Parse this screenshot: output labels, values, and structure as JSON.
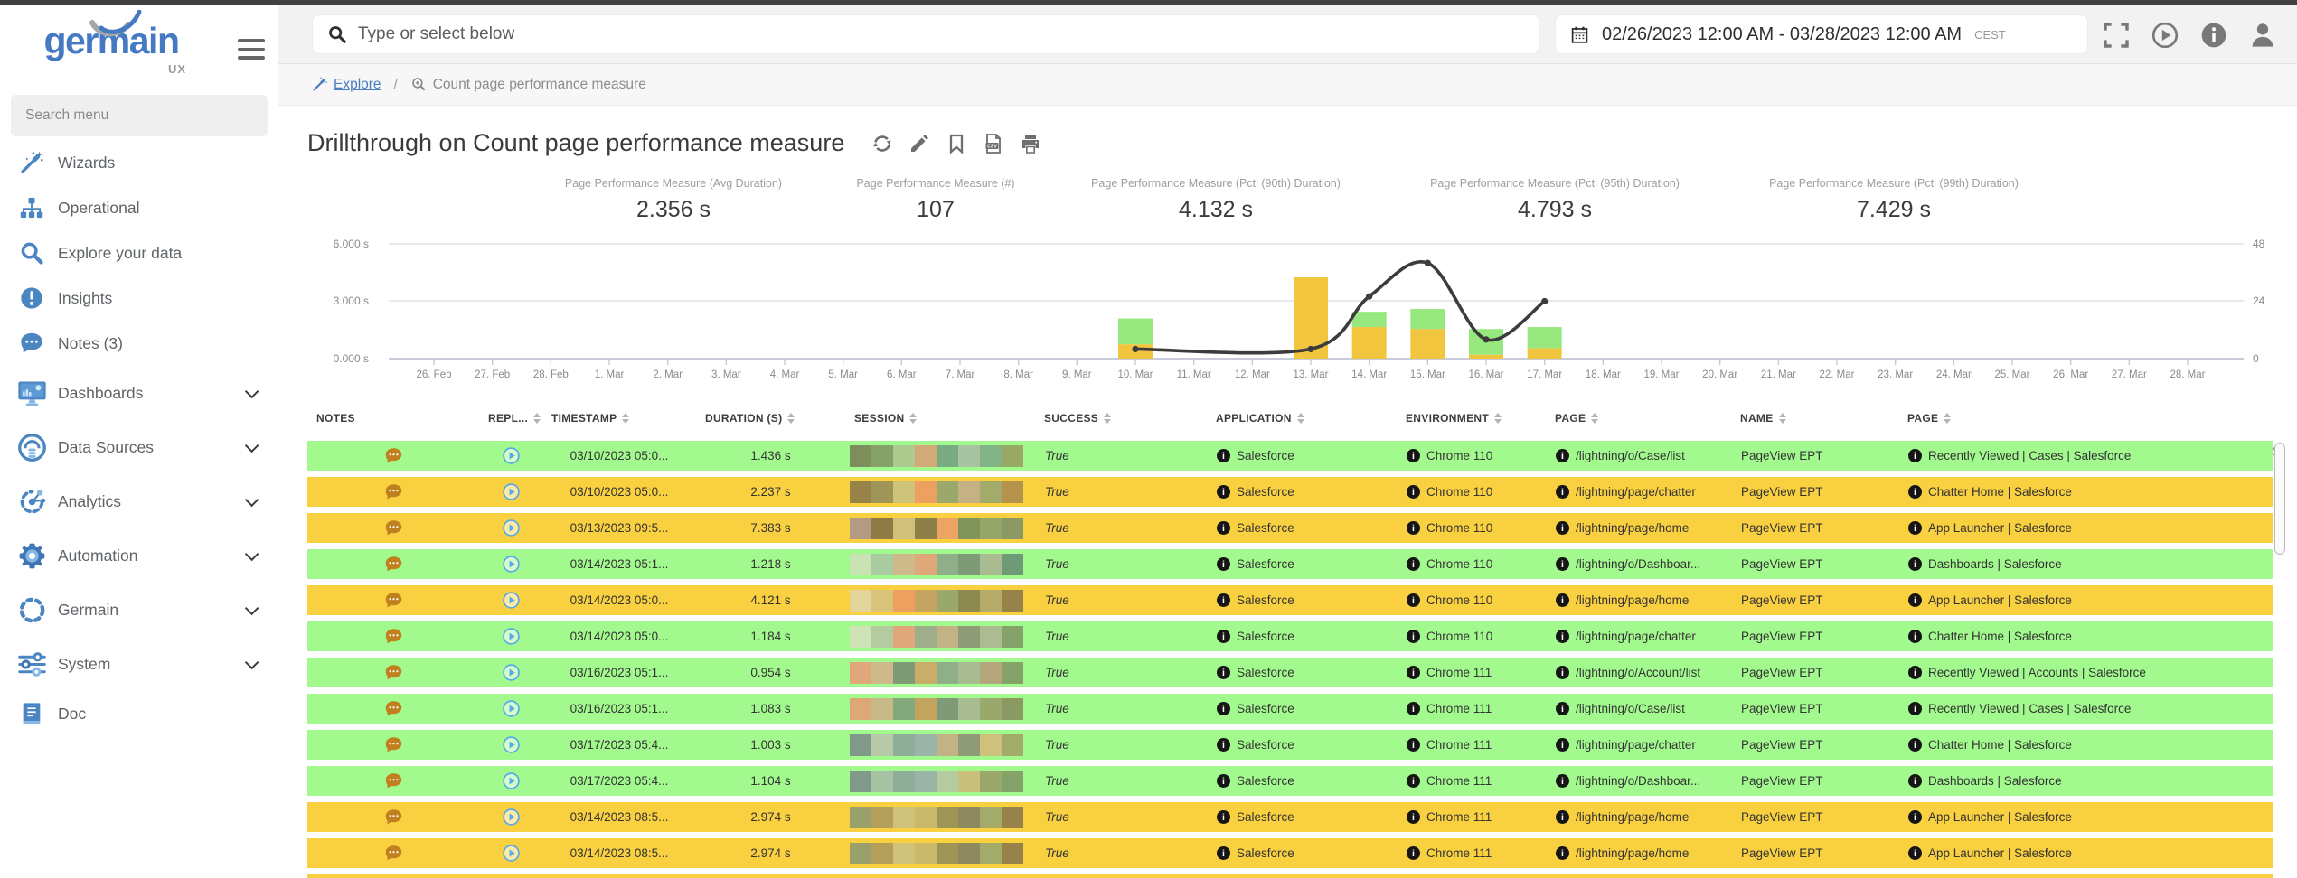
{
  "colors": {
    "accent_blue": "#4579c2",
    "link_blue": "#4a7ec1",
    "row_green": "#a2fa8e",
    "row_yellow": "#f9d040",
    "bar_green": "#97e97f",
    "bar_yellow": "#f2c53e",
    "line_color": "#3c3c3c"
  },
  "sidebar": {
    "logo_text": "germain",
    "logo_sub": "UX",
    "search_placeholder": "Search menu",
    "items": [
      {
        "label": "Wizards",
        "icon": "wand",
        "expandable": false
      },
      {
        "label": "Operational",
        "icon": "sitemap",
        "expandable": false
      },
      {
        "label": "Explore your data",
        "icon": "search",
        "expandable": false
      },
      {
        "label": "Insights",
        "icon": "insight",
        "expandable": false
      },
      {
        "label": "Notes (3)",
        "icon": "comment",
        "expandable": false
      },
      {
        "label": "Dashboards",
        "icon": "dashboard",
        "expandable": true
      },
      {
        "label": "Data Sources",
        "icon": "datasource",
        "expandable": true
      },
      {
        "label": "Analytics",
        "icon": "analytics",
        "expandable": true
      },
      {
        "label": "Automation",
        "icon": "gear",
        "expandable": true
      },
      {
        "label": "Germain",
        "icon": "dashed-circle",
        "expandable": true
      },
      {
        "label": "System",
        "icon": "sliders",
        "expandable": true
      },
      {
        "label": "Doc",
        "icon": "book",
        "expandable": false
      }
    ]
  },
  "topbar": {
    "search_placeholder": "Type or select below",
    "date_range": "02/26/2023 12:00 AM - 03/28/2023 12:00 AM",
    "timezone": "CEST",
    "icons": [
      "fullscreen",
      "play",
      "info",
      "user"
    ]
  },
  "breadcrumb": {
    "explore_label": "Explore",
    "separator": "/",
    "current": "Count page performance measure"
  },
  "page": {
    "title": "Drillthrough on Count page performance measure",
    "title_actions": [
      "refresh",
      "edit",
      "bookmark",
      "export-csv",
      "print"
    ]
  },
  "chart_data": {
    "type": "combo-bar-line",
    "summary_metrics": [
      {
        "label": "Page Performance Measure (Avg Duration)",
        "value": "2.356 s"
      },
      {
        "label": "Page Performance Measure (#)",
        "value": "107"
      },
      {
        "label": "Page Performance Measure (Pctl (90th) Duration)",
        "value": "4.132 s"
      },
      {
        "label": "Page Performance Measure (Pctl (95th) Duration)",
        "value": "4.793 s"
      },
      {
        "label": "Page Performance Measure (Pctl (99th) Duration)",
        "value": "7.429 s"
      }
    ],
    "x_labels": [
      "26. Feb",
      "27. Feb",
      "28. Feb",
      "1. Mar",
      "2. Mar",
      "3. Mar",
      "4. Mar",
      "5. Mar",
      "6. Mar",
      "7. Mar",
      "8. Mar",
      "9. Mar",
      "10. Mar",
      "11. Mar",
      "12. Mar",
      "13. Mar",
      "14. Mar",
      "15. Mar",
      "16. Mar",
      "17. Mar",
      "18. Mar",
      "19. Mar",
      "20. Mar",
      "21. Mar",
      "22. Mar",
      "23. Mar",
      "24. Mar",
      "25. Mar",
      "26. Mar",
      "27. Mar",
      "28. Mar"
    ],
    "left_axis": {
      "unit": "seconds",
      "ticks": [
        "0.000 s",
        "3.000 s",
        "6.000 s"
      ],
      "min": 0,
      "max": 6
    },
    "right_axis": {
      "ticks": [
        0,
        24,
        48
      ],
      "min": 0,
      "max": 48
    },
    "grid": true,
    "legend": "none",
    "bars": {
      "stack_order": [
        "yellow",
        "green"
      ],
      "series": [
        {
          "name": "duration-yellow",
          "color": "#f2c53e",
          "values": {
            "10. Mar": 0.75,
            "13. Mar": 4.25,
            "14. Mar": 1.65,
            "15. Mar": 1.55,
            "16. Mar": 0.2,
            "17. Mar": 0.55
          }
        },
        {
          "name": "duration-green",
          "color": "#97e97f",
          "values": {
            "10. Mar": 1.35,
            "13. Mar": 0,
            "14. Mar": 0.8,
            "15. Mar": 1.05,
            "16. Mar": 1.35,
            "17. Mar": 1.1
          }
        }
      ]
    },
    "line": {
      "name": "page-performance-measure-count",
      "color": "#3c3c3c",
      "points": [
        [
          "10. Mar",
          4
        ],
        [
          "13. Mar",
          4
        ],
        [
          "14. Mar",
          26
        ],
        [
          "15. Mar",
          40
        ],
        [
          "16. Mar",
          8
        ],
        [
          "17. Mar",
          24
        ]
      ]
    }
  },
  "table": {
    "headers": [
      {
        "label": "NOTES",
        "sortable": false
      },
      {
        "label": "REPL...",
        "sortable": true
      },
      {
        "label": "TIMESTAMP",
        "sortable": true
      },
      {
        "label": "DURATION (S)",
        "sortable": true
      },
      {
        "label": "SESSION",
        "sortable": true
      },
      {
        "label": "SUCCESS",
        "sortable": true
      },
      {
        "label": "APPLICATION",
        "sortable": true
      },
      {
        "label": "ENVIRONMENT",
        "sortable": true
      },
      {
        "label": "PAGE",
        "sortable": true
      },
      {
        "label": "NAME",
        "sortable": true
      },
      {
        "label": "PAGE",
        "sortable": true
      }
    ],
    "rows": [
      {
        "bg": "green",
        "timestamp": "03/10/2023 05:0...",
        "duration": "1.436 s",
        "success": "True",
        "application": "Salesforce",
        "environment": "Chrome 110",
        "page": "/lightning/o/Case/list",
        "name": "PageView EPT",
        "page2": "Recently Viewed | Cases | Salesforce",
        "session_colors": [
          "#7d8d5c",
          "#85a269",
          "#aecb8f",
          "#d2aa78",
          "#79ab82",
          "#a8c3a4",
          "#83b488",
          "#99a865"
        ]
      },
      {
        "bg": "yellow",
        "timestamp": "03/10/2023 05:0...",
        "duration": "2.237 s",
        "success": "True",
        "application": "Salesforce",
        "environment": "Chrome 110",
        "page": "/lightning/page/chatter",
        "name": "PageView EPT",
        "page2": "Chatter Home | Salesforce",
        "session_colors": [
          "#97824a",
          "#9d9455",
          "#cfc37b",
          "#eda05f",
          "#9aa96b",
          "#c4b284",
          "#a3ab6b",
          "#b5934d"
        ]
      },
      {
        "bg": "yellow",
        "timestamp": "03/13/2023 09:5...",
        "duration": "7.383 s",
        "success": "True",
        "application": "Salesforce",
        "environment": "Chrome 110",
        "page": "/lightning/page/home",
        "name": "PageView EPT",
        "page2": "App Launcher | Salesforce",
        "session_colors": [
          "#b39a82",
          "#8d7a45",
          "#cfc17b",
          "#8d7f48",
          "#eda463",
          "#81945b",
          "#95a668",
          "#8a9a62"
        ]
      },
      {
        "bg": "green",
        "timestamp": "03/14/2023 05:1...",
        "duration": "1.218 s",
        "success": "True",
        "application": "Salesforce",
        "environment": "Chrome 110",
        "page": "/lightning/o/Dashboar...",
        "name": "PageView EPT",
        "page2": "Dashboards | Salesforce",
        "session_colors": [
          "#c9e3b4",
          "#a9cba0",
          "#cdb98a",
          "#e0a87a",
          "#8fae8a",
          "#7f9a77",
          "#a9bb90",
          "#6f9a78"
        ]
      },
      {
        "bg": "yellow",
        "timestamp": "03/14/2023 05:0...",
        "duration": "4.121 s",
        "success": "True",
        "application": "Salesforce",
        "environment": "Chrome 110",
        "page": "/lightning/page/home",
        "name": "PageView EPT",
        "page2": "App Launcher | Salesforce",
        "session_colors": [
          "#e3d49a",
          "#d9c27a",
          "#eda05f",
          "#c4a45f",
          "#9aa96b",
          "#8d8a50",
          "#b5ab6b",
          "#97824a"
        ]
      },
      {
        "bg": "green",
        "timestamp": "03/14/2023 05:0...",
        "duration": "1.184 s",
        "success": "True",
        "application": "Salesforce",
        "environment": "Chrome 110",
        "page": "/lightning/page/chatter",
        "name": "PageView EPT",
        "page2": "Chatter Home | Salesforce",
        "session_colors": [
          "#cfe3b4",
          "#b4cba0",
          "#e0a87a",
          "#9fae8a",
          "#c2b284",
          "#8f9a77",
          "#adbb90",
          "#85a269"
        ]
      },
      {
        "bg": "green",
        "timestamp": "03/16/2023 05:1...",
        "duration": "0.954 s",
        "success": "True",
        "application": "Salesforce",
        "environment": "Chrome 111",
        "page": "/lightning/o/Account/list",
        "name": "PageView EPT",
        "page2": "Recently Viewed | Accounts | Salesforce",
        "session_colors": [
          "#e0a87a",
          "#cdb98a",
          "#7f9a77",
          "#c9ae6a",
          "#8fae8a",
          "#a9bb90",
          "#b4a67a",
          "#85a269"
        ]
      },
      {
        "bg": "green",
        "timestamp": "03/16/2023 05:1...",
        "duration": "1.083 s",
        "success": "True",
        "application": "Salesforce",
        "environment": "Chrome 111",
        "page": "/lightning/o/Case/list",
        "name": "PageView EPT",
        "page2": "Recently Viewed | Cases | Salesforce",
        "session_colors": [
          "#dca878",
          "#c9b888",
          "#83a87c",
          "#c2a45f",
          "#7f9a77",
          "#a9bb90",
          "#9aa96b",
          "#8a9a62"
        ]
      },
      {
        "bg": "green",
        "timestamp": "03/17/2023 05:4...",
        "duration": "1.003 s",
        "success": "True",
        "application": "Salesforce",
        "environment": "Chrome 111",
        "page": "/lightning/page/chatter",
        "name": "PageView EPT",
        "page2": "Chatter Home | Salesforce",
        "session_colors": [
          "#7f9a8a",
          "#b8c9a8",
          "#8fae9a",
          "#9ab4a8",
          "#c2b284",
          "#8f9a77",
          "#cfc17b",
          "#a3ab6b"
        ]
      },
      {
        "bg": "green",
        "timestamp": "03/17/2023 05:4...",
        "duration": "1.104 s",
        "success": "True",
        "application": "Salesforce",
        "environment": "Chrome 111",
        "page": "/lightning/o/Dashboar...",
        "name": "PageView EPT",
        "page2": "Dashboards | Salesforce",
        "session_colors": [
          "#7f9a8a",
          "#a8c3a4",
          "#8fae9a",
          "#9ab4a8",
          "#b4cba0",
          "#c9c17b",
          "#9aa96b",
          "#85a269"
        ]
      },
      {
        "bg": "yellow",
        "timestamp": "03/14/2023 08:5...",
        "duration": "2.974 s",
        "success": "True",
        "application": "Salesforce",
        "environment": "Chrome 111",
        "page": "/lightning/page/home",
        "name": "PageView EPT",
        "page2": "App Launcher | Salesforce",
        "session_colors": [
          "#9aa06b",
          "#b5a05a",
          "#cfc37b",
          "#c9b86a",
          "#9d9455",
          "#8d8a60",
          "#a3ab6b",
          "#97824a"
        ]
      },
      {
        "bg": "yellow",
        "timestamp": "03/14/2023 08:5...",
        "duration": "2.974 s",
        "success": "True",
        "application": "Salesforce",
        "environment": "Chrome 111",
        "page": "/lightning/page/home",
        "name": "PageView EPT",
        "page2": "App Launcher | Salesforce",
        "session_colors": [
          "#9aa06b",
          "#b5a05a",
          "#cfc37b",
          "#c9b86a",
          "#9d9455",
          "#8d8a60",
          "#a3ab6b",
          "#97824a"
        ]
      }
    ],
    "partial_row_bg": "yellow"
  }
}
